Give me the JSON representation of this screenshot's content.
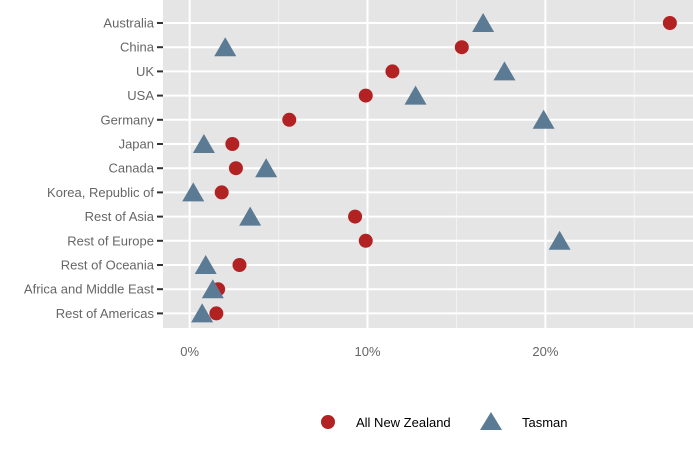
{
  "chart_data": {
    "type": "scatter",
    "title": "",
    "xlabel": "",
    "ylabel": "",
    "categories": [
      "Australia",
      "China",
      "UK",
      "USA",
      "Germany",
      "Japan",
      "Canada",
      "Korea, Republic of",
      "Rest of Asia",
      "Rest of Europe",
      "Rest of Oceania",
      "Africa and Middle East",
      "Rest of Americas"
    ],
    "xlim": [
      -0.015,
      0.283
    ],
    "x_ticks": [
      0,
      0.1,
      0.2
    ],
    "x_tick_labels": [
      "0%",
      "10%",
      "20%"
    ],
    "grid": true,
    "legend_position": "bottom",
    "series": [
      {
        "name": "All New Zealand",
        "marker": "circle",
        "color": "#b22222",
        "values": [
          0.27,
          0.153,
          0.114,
          0.099,
          0.056,
          0.024,
          0.026,
          0.018,
          0.093,
          0.099,
          0.028,
          0.016,
          0.015
        ]
      },
      {
        "name": "Tasman",
        "marker": "triangle",
        "color": "#5b7a94",
        "values": [
          0.165,
          0.02,
          0.177,
          0.127,
          0.199,
          0.008,
          0.043,
          0.002,
          0.034,
          0.208,
          0.009,
          0.013,
          0.007
        ]
      }
    ]
  }
}
